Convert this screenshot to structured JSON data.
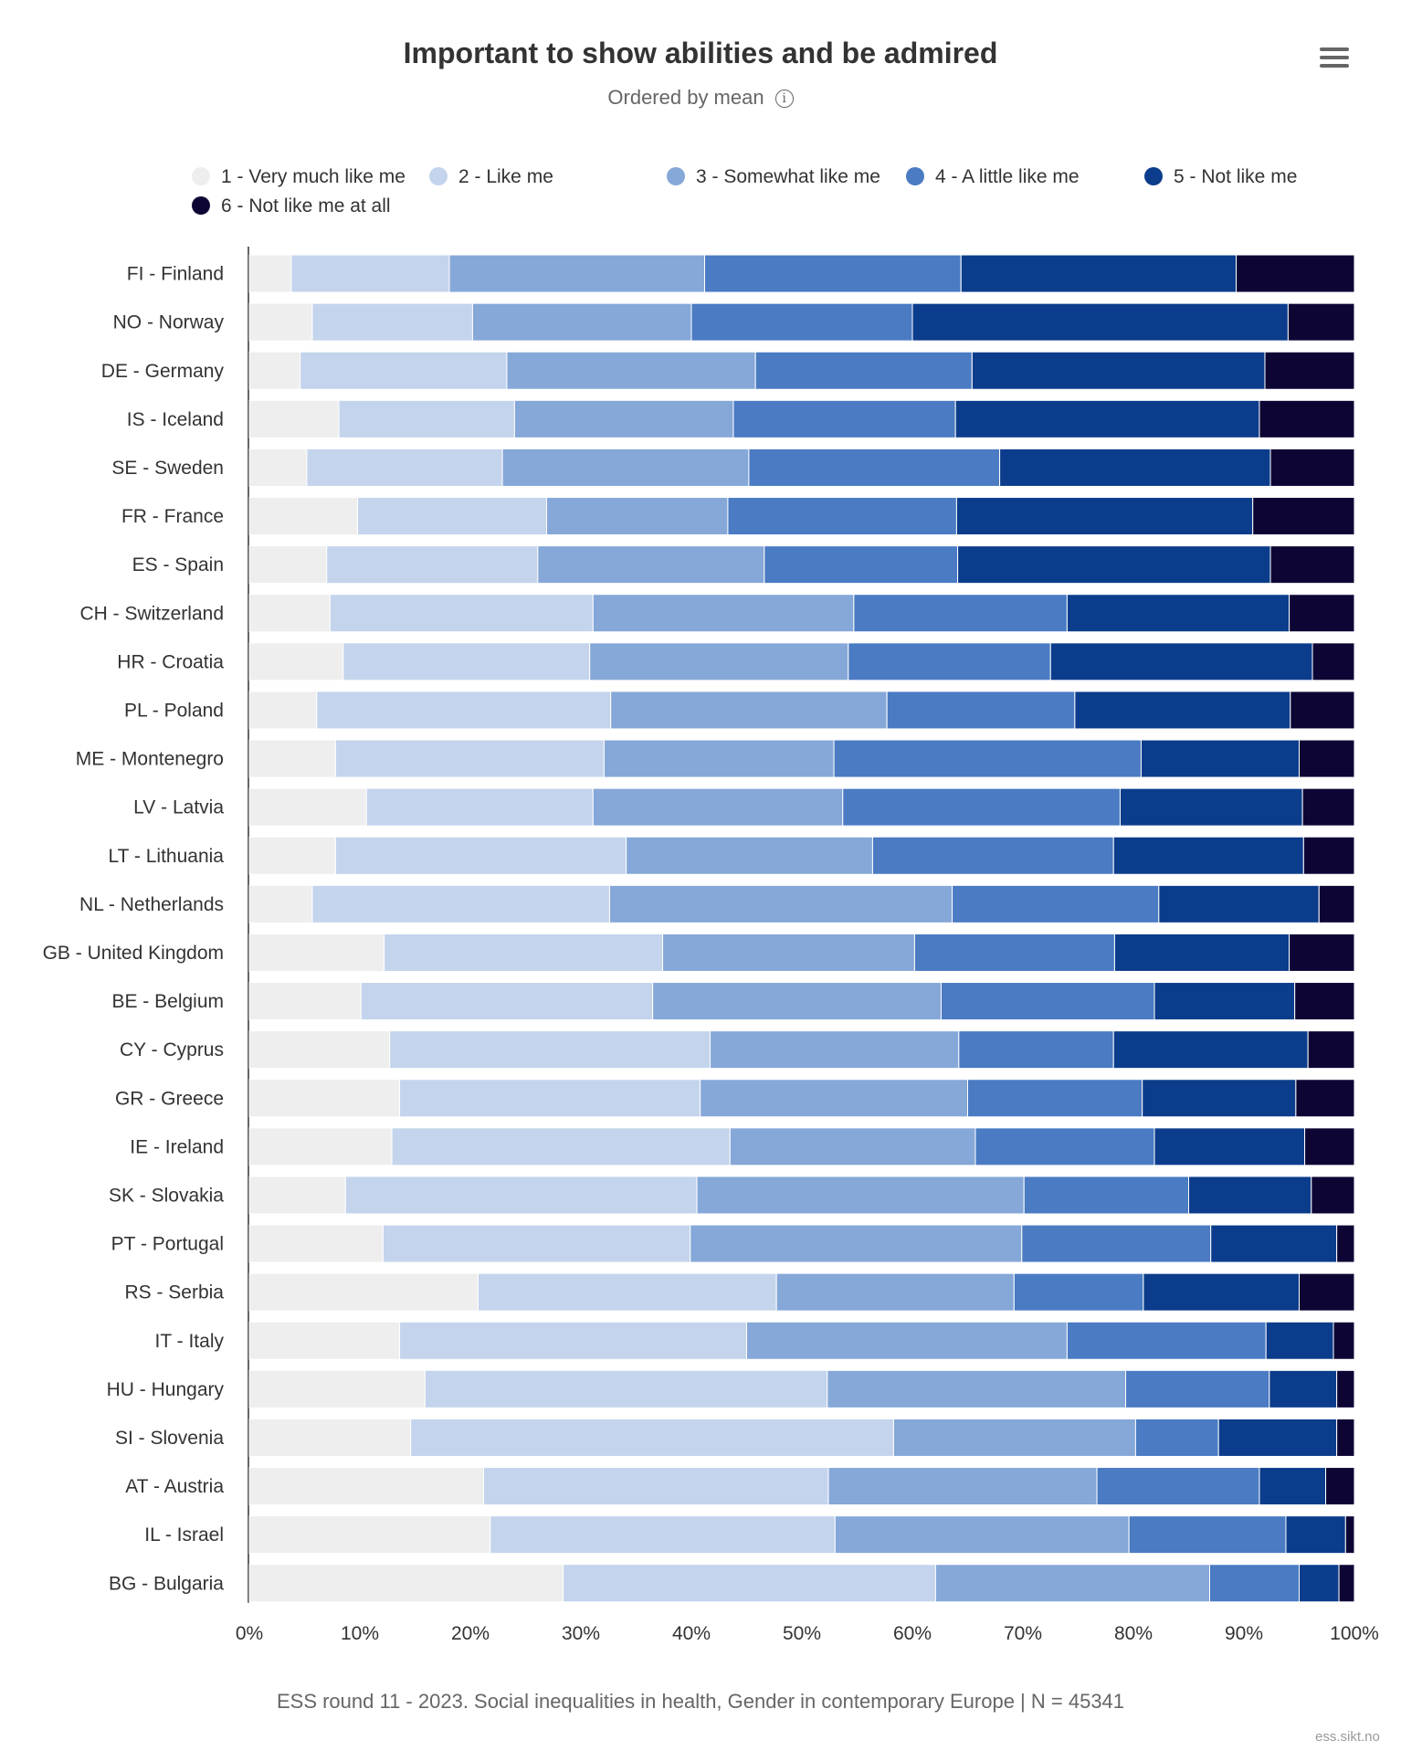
{
  "header": {
    "title": "Important to show abilities and be admired",
    "subtitle": "Ordered by mean",
    "info_icon": "info-icon",
    "menu_icon": "hamburger-menu-icon"
  },
  "legend": [
    {
      "label": "1 - Very much like me",
      "color": "#eeeeee"
    },
    {
      "label": "2 - Like me",
      "color": "#c4d4ec"
    },
    {
      "label": "3 - Somewhat like me",
      "color": "#86a8d8"
    },
    {
      "label": "4 - A little like me",
      "color": "#4a7bc3"
    },
    {
      "label": "5 - Not like me",
      "color": "#0c3d8c"
    },
    {
      "label": "6 - Not like me at all",
      "color": "#0d0635"
    }
  ],
  "chart_data": {
    "type": "bar",
    "orientation": "horizontal",
    "stacking": "percent",
    "title": "Important to show abilities and be admired",
    "subtitle": "Ordered by mean",
    "xlim": [
      0,
      100
    ],
    "x_ticks": [
      "0%",
      "10%",
      "20%",
      "30%",
      "40%",
      "50%",
      "60%",
      "70%",
      "80%",
      "90%",
      "100%"
    ],
    "grid": true,
    "legend_position": "top",
    "categories": [
      "FI - Finland",
      "NO - Norway",
      "DE - Germany",
      "IS - Iceland",
      "SE - Sweden",
      "FR - France",
      "ES - Spain",
      "CH - Switzerland",
      "HR - Croatia",
      "PL - Poland",
      "ME - Montenegro",
      "LV - Latvia",
      "LT - Lithuania",
      "NL - Netherlands",
      "GB - United Kingdom",
      "BE - Belgium",
      "CY - Cyprus",
      "GR - Greece",
      "IE - Ireland",
      "SK - Slovakia",
      "PT - Portugal",
      "RS - Serbia",
      "IT - Italy",
      "HU - Hungary",
      "SI - Slovenia",
      "AT - Austria",
      "IL - Israel",
      "BG - Bulgaria"
    ],
    "series": [
      {
        "name": "1 - Very much like me",
        "color": "#eeeeee",
        "values": [
          3.8,
          5.7,
          4.6,
          8.1,
          5.2,
          9.8,
          7.0,
          7.3,
          8.5,
          6.1,
          7.8,
          10.6,
          7.8,
          5.7,
          12.2,
          10.1,
          12.7,
          13.6,
          12.9,
          8.7,
          12.1,
          20.7,
          13.6,
          15.9,
          14.6,
          21.2,
          21.8,
          28.4
        ]
      },
      {
        "name": "2 - Like me",
        "color": "#c4d4ec",
        "values": [
          14.3,
          14.5,
          18.7,
          15.9,
          17.7,
          17.1,
          19.1,
          23.8,
          22.3,
          26.6,
          24.3,
          20.5,
          26.3,
          26.9,
          25.2,
          26.4,
          29.0,
          27.2,
          30.6,
          31.8,
          27.8,
          27.0,
          31.4,
          36.4,
          43.7,
          31.2,
          31.2,
          33.7
        ]
      },
      {
        "name": "3 - Somewhat like me",
        "color": "#86a8d8",
        "values": [
          23.1,
          19.8,
          22.5,
          19.8,
          22.3,
          16.4,
          20.5,
          23.6,
          23.4,
          25.0,
          20.8,
          22.6,
          22.3,
          31.0,
          22.8,
          26.1,
          22.5,
          24.2,
          22.2,
          29.6,
          30.0,
          21.5,
          29.0,
          27.0,
          21.9,
          24.3,
          26.6,
          24.8
        ]
      },
      {
        "name": "4 - A little like me",
        "color": "#4a7bc3",
        "values": [
          23.2,
          20.0,
          19.6,
          20.1,
          22.7,
          20.7,
          17.5,
          19.3,
          18.3,
          17.0,
          27.8,
          25.1,
          21.8,
          18.7,
          18.1,
          19.3,
          14.0,
          15.8,
          16.2,
          14.9,
          17.1,
          11.7,
          18.0,
          13.0,
          7.5,
          14.7,
          14.2,
          8.1
        ]
      },
      {
        "name": "5 - Not like me",
        "color": "#0c3d8c",
        "values": [
          24.9,
          34.0,
          26.5,
          27.5,
          24.5,
          26.8,
          28.3,
          20.1,
          23.7,
          19.5,
          14.3,
          16.5,
          17.2,
          14.5,
          15.8,
          12.7,
          17.6,
          13.9,
          13.6,
          11.1,
          11.4,
          14.1,
          6.1,
          6.1,
          10.7,
          6.0,
          5.4,
          3.6
        ]
      },
      {
        "name": "6 - Not like me at all",
        "color": "#0d0635",
        "values": [
          10.7,
          6.0,
          8.1,
          8.6,
          7.6,
          9.2,
          7.6,
          5.9,
          3.8,
          5.8,
          5.0,
          4.7,
          4.6,
          3.2,
          5.9,
          5.4,
          4.2,
          5.3,
          4.5,
          3.9,
          1.6,
          5.0,
          1.9,
          1.6,
          1.6,
          2.6,
          0.8,
          1.4
        ]
      }
    ]
  },
  "footer": {
    "caption": "ESS round 11 - 2023. Social inequalities in health, Gender in contemporary Europe | N = 45341",
    "credit": "ess.sikt.no"
  }
}
